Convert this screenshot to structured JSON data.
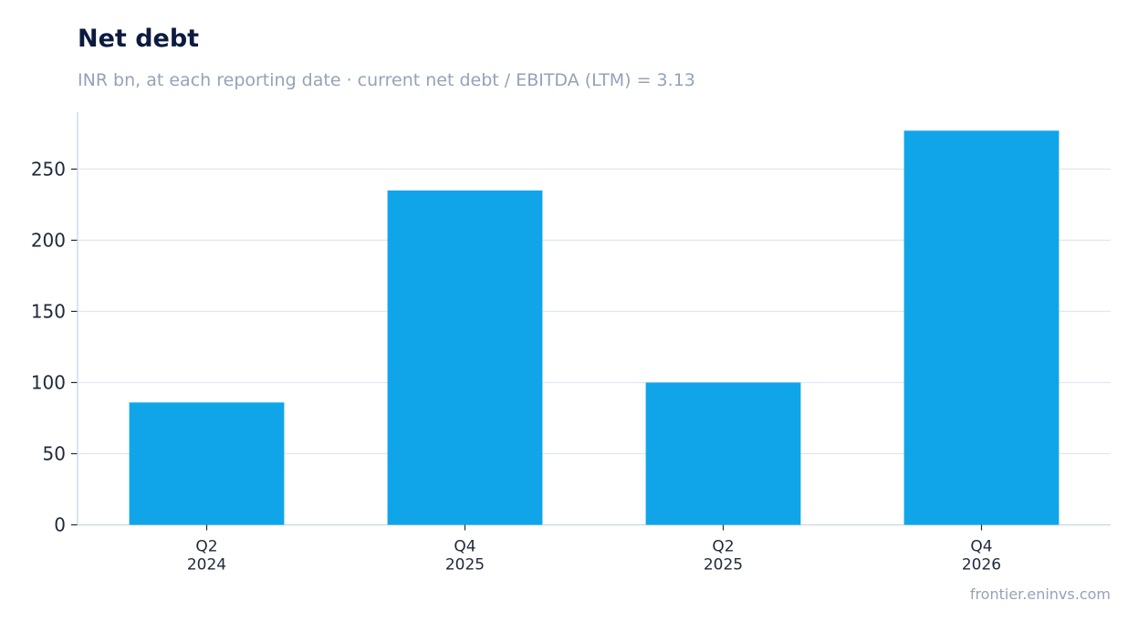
{
  "header": {
    "title": "Net debt",
    "subtitle": "INR bn, at each reporting date · current net debt / EBITDA (LTM) = 3.13"
  },
  "footer": {
    "source": "frontier.eninvs.com"
  },
  "colors": {
    "bar": "#10a5e9",
    "grid": "#e2e8f0",
    "axis": "#cbd5e1",
    "title": "#0c1b3f",
    "muted": "#94a3b8"
  },
  "chart_data": {
    "type": "bar",
    "title": "Net debt",
    "subtitle": "INR bn, at each reporting date · current net debt / EBITDA (LTM) = 3.13",
    "categories": [
      [
        "Q2",
        "2024"
      ],
      [
        "Q4",
        "2025"
      ],
      [
        "Q2",
        "2025"
      ],
      [
        "Q4",
        "2026"
      ]
    ],
    "values": [
      86,
      235,
      100,
      277
    ],
    "xlabel": "",
    "ylabel": "",
    "ylim": [
      0,
      290
    ],
    "yticks": [
      0,
      50,
      100,
      150,
      200,
      250
    ],
    "grid": true,
    "legend": "none"
  }
}
